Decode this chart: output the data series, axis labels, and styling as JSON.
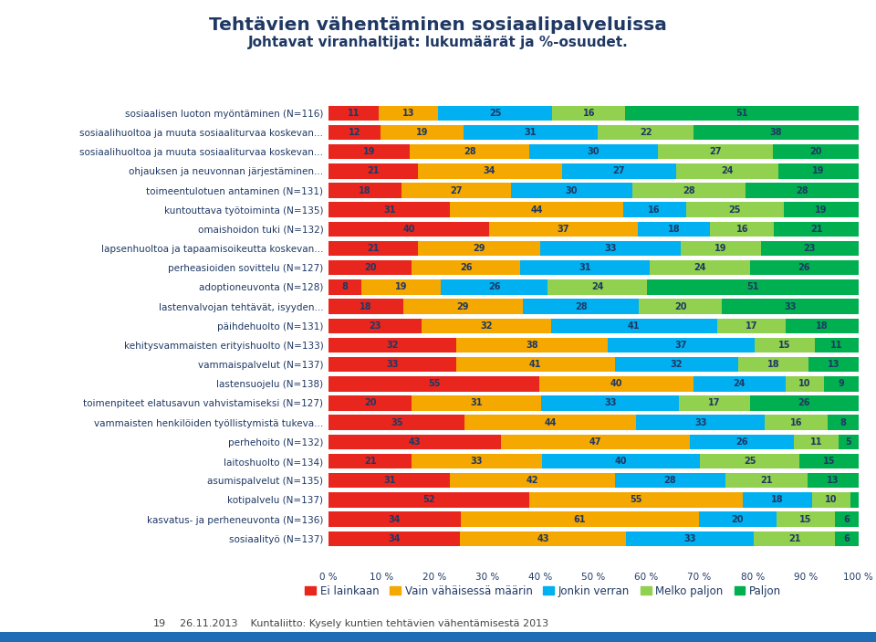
{
  "title_line1": "Tehtävien vähentäminen sosiaalipalveluissa",
  "title_line2": "Johtavat viranhaltijat: lukumäärät ja %-osuudet.",
  "categories": [
    "sosiaalisen luoton myöntäminen (N=116)",
    "sosiaalihuoltoa ja muuta sosiaaliturvaa koskevan...",
    "sosiaalihuoltoa ja muuta sosiaaliturvaa koskevan...",
    "ohjauksen ja neuvonnan järjestäminen...",
    "toimeentulotuen antaminen (N=131)",
    "kuntouttava työtoiminta (N=135)",
    "omaishoidon tuki (N=132)",
    "lapsenhuoltoa ja tapaamisoikeutta koskevan...",
    "perheasioiden sovittelu (N=127)",
    "adoptioneuvonta (N=128)",
    "lastenvalvojan tehtävät, isyyden...",
    "päihdehuolto (N=131)",
    "kehitysvammaisten erityishuolto (N=133)",
    "vammaispalvelut (N=137)",
    "lastensuojelu (N=138)",
    "toimenpiteet elatusavun vahvistamiseksi (N=127)",
    "vammaisten henkilöiden työllistymistä tukeva...",
    "perhehoito (N=132)",
    "laitoshuolto (N=134)",
    "asumispalvelut (N=135)",
    "kotipalvelu (N=137)",
    "kasvatus- ja perheneuvonta (N=136)",
    "sosiaalityö (N=137)"
  ],
  "data": [
    [
      11,
      13,
      25,
      16,
      51
    ],
    [
      12,
      19,
      31,
      22,
      38
    ],
    [
      19,
      28,
      30,
      27,
      20
    ],
    [
      21,
      34,
      27,
      24,
      19
    ],
    [
      18,
      27,
      30,
      28,
      28
    ],
    [
      31,
      44,
      16,
      25,
      19
    ],
    [
      40,
      37,
      18,
      16,
      21
    ],
    [
      21,
      29,
      33,
      19,
      23
    ],
    [
      20,
      26,
      31,
      24,
      26
    ],
    [
      8,
      19,
      26,
      24,
      51
    ],
    [
      18,
      29,
      28,
      20,
      33
    ],
    [
      23,
      32,
      41,
      17,
      18
    ],
    [
      32,
      38,
      37,
      15,
      11
    ],
    [
      33,
      41,
      32,
      18,
      13
    ],
    [
      55,
      40,
      24,
      10,
      9
    ],
    [
      20,
      31,
      33,
      17,
      26
    ],
    [
      35,
      44,
      33,
      16,
      8
    ],
    [
      43,
      47,
      26,
      11,
      5
    ],
    [
      21,
      33,
      40,
      25,
      15
    ],
    [
      31,
      42,
      28,
      21,
      13
    ],
    [
      52,
      55,
      18,
      10,
      2
    ],
    [
      34,
      61,
      20,
      15,
      6
    ],
    [
      34,
      43,
      33,
      21,
      6
    ]
  ],
  "colors": [
    "#e8261e",
    "#f5a800",
    "#00b0f0",
    "#92d050",
    "#00b050"
  ],
  "legend_labels": [
    "Ei lainkaan",
    "Vain vähäisessä määrin",
    "Jonkin verran",
    "Melko paljon",
    "Paljon"
  ],
  "footer_num": "19",
  "footer_date": "26.11.2013",
  "footer_text": "Kuntaliitto: Kysely kuntien tehtävien vähentämisestä 2013",
  "background_color": "#ffffff",
  "title_color": "#1f3864",
  "bar_text_color": "#1f3864",
  "label_color": "#1f3864",
  "xtick_labels": [
    "0 %",
    "10 %",
    "20 %",
    "30 %",
    "40 %",
    "50 %",
    "60 %",
    "70 %",
    "80 %",
    "90 %",
    "100 %"
  ]
}
